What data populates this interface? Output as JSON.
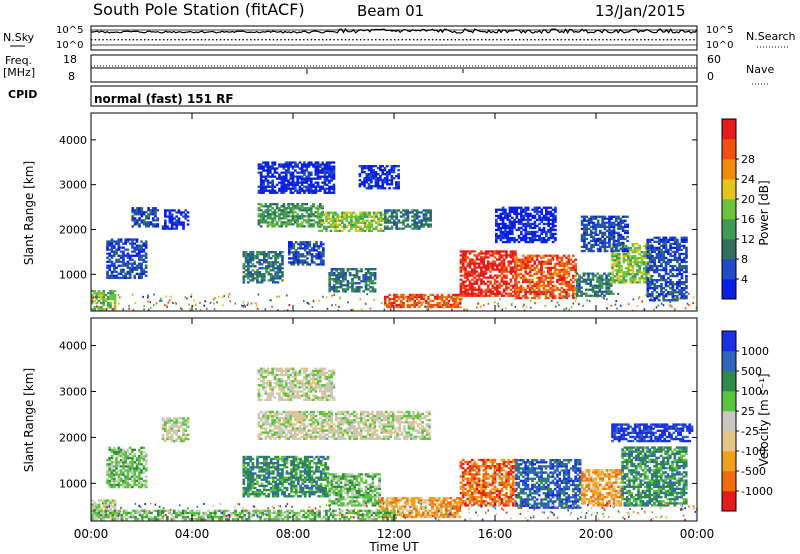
{
  "header": {
    "station": "South Pole Station (fitACF)",
    "beam": "Beam 01",
    "date": "13/Jan/2015"
  },
  "sky_panel": {
    "left_label": "N.Sky",
    "right_label": "N.Search",
    "top_tick": "10^5",
    "bottom_tick": "10^0",
    "right_top_tick": "10^5",
    "right_bottom_tick": "10^0"
  },
  "freq_panel": {
    "left_label_1": "Freq.",
    "left_label_2": "[MHz]",
    "left_top_tick": "18",
    "left_bottom_tick": "8",
    "right_label": "Nave",
    "right_top_tick": "60",
    "right_bottom_tick": "0"
  },
  "cpid": {
    "label": "CPID",
    "value": "normal (fast) 151 RF"
  },
  "chart_data": [
    {
      "type": "heatmap",
      "panel": "power",
      "ylabel": "Slant Range [km]",
      "ylim": [
        180,
        4600
      ],
      "yticks": [
        "1000",
        "2000",
        "3000",
        "4000"
      ],
      "colorbar": {
        "label": "Power [dB]",
        "ticks": [
          "4",
          "8",
          "12",
          "16",
          "20",
          "24",
          "28"
        ],
        "colors": [
          "#0a1ee6",
          "#1f4bc7",
          "#2f6f5f",
          "#3f9a55",
          "#6cc43a",
          "#e6c419",
          "#f08a0a",
          "#f05012",
          "#e61a1a"
        ]
      },
      "regions": [
        {
          "t0": 0.0,
          "t1": 0.9,
          "r0": 200,
          "r1": 650,
          "level": 4
        },
        {
          "t0": 0.6,
          "t1": 2.2,
          "r0": 900,
          "r1": 1800,
          "level": 1
        },
        {
          "t0": 1.6,
          "t1": 2.6,
          "r0": 2050,
          "r1": 2500,
          "level": 1
        },
        {
          "t0": 2.8,
          "t1": 3.8,
          "r0": 2000,
          "r1": 2450,
          "level": 0
        },
        {
          "t0": 6.6,
          "t1": 9.2,
          "r0": 2050,
          "r1": 2550,
          "level": 3
        },
        {
          "t0": 9.0,
          "t1": 11.6,
          "r0": 1950,
          "r1": 2400,
          "level": 4
        },
        {
          "t0": 11.6,
          "t1": 13.4,
          "r0": 2000,
          "r1": 2450,
          "level": 2
        },
        {
          "t0": 6.0,
          "t1": 7.6,
          "r0": 800,
          "r1": 1500,
          "level": 2
        },
        {
          "t0": 7.8,
          "t1": 9.2,
          "r0": 1200,
          "r1": 1700,
          "level": 1
        },
        {
          "t0": 9.4,
          "t1": 11.2,
          "r0": 600,
          "r1": 1100,
          "level": 2
        },
        {
          "t0": 11.6,
          "t1": 14.6,
          "r0": 250,
          "r1": 550,
          "level": 7
        },
        {
          "t0": 14.6,
          "t1": 16.8,
          "r0": 500,
          "r1": 1500,
          "level": 8
        },
        {
          "t0": 16.8,
          "t1": 19.2,
          "r0": 450,
          "r1": 1400,
          "level": 7
        },
        {
          "t0": 19.2,
          "t1": 20.6,
          "r0": 500,
          "r1": 1000,
          "level": 2
        },
        {
          "t0": 20.6,
          "t1": 22.2,
          "r0": 800,
          "r1": 1700,
          "level": 4
        },
        {
          "t0": 22.0,
          "t1": 23.6,
          "r0": 400,
          "r1": 1800,
          "level": 1
        },
        {
          "t0": 19.4,
          "t1": 21.2,
          "r0": 1500,
          "r1": 2300,
          "level": 1
        },
        {
          "t0": 16.0,
          "t1": 18.4,
          "r0": 1700,
          "r1": 2500,
          "level": 0
        },
        {
          "t0": 6.6,
          "t1": 9.6,
          "r0": 2800,
          "r1": 3500,
          "level": 0
        },
        {
          "t0": 10.6,
          "t1": 12.2,
          "r0": 2900,
          "r1": 3400,
          "level": 0
        }
      ]
    },
    {
      "type": "heatmap",
      "panel": "velocity",
      "ylabel": "Slant Range [km]",
      "ylim": [
        180,
        4600
      ],
      "yticks": [
        "1000",
        "2000",
        "3000",
        "4000"
      ],
      "xlabel": "Time UT",
      "xticks": [
        "00:00",
        "04:00",
        "08:00",
        "12:00",
        "16:00",
        "20:00",
        "00:00"
      ],
      "xlim_hours": [
        0,
        24
      ],
      "colorbar": {
        "label": "Velocity [m s⁻¹]",
        "ticks": [
          "1000",
          "500",
          "100",
          "25",
          "-25",
          "-100",
          "-500",
          "-1000"
        ],
        "colors": [
          "#1a30e6",
          "#2f66b8",
          "#2f8a4a",
          "#5ac43a",
          "#c8c8c0",
          "#e6c485",
          "#f0a01a",
          "#f06a10",
          "#e61a1a"
        ]
      },
      "regions": [
        {
          "t0": 0.0,
          "t1": 0.9,
          "r0": 200,
          "r1": 650,
          "level": 4
        },
        {
          "t0": 0.6,
          "t1": 2.2,
          "r0": 900,
          "r1": 1800,
          "level": 3
        },
        {
          "t0": 2.8,
          "t1": 3.8,
          "r0": 1900,
          "r1": 2400,
          "level": 4
        },
        {
          "t0": 6.6,
          "t1": 13.4,
          "r0": 1950,
          "r1": 2550,
          "level": 4
        },
        {
          "t0": 6.0,
          "t1": 9.4,
          "r0": 700,
          "r1": 1600,
          "level": 2
        },
        {
          "t0": 9.4,
          "t1": 11.4,
          "r0": 500,
          "r1": 1200,
          "level": 3
        },
        {
          "t0": 11.4,
          "t1": 14.6,
          "r0": 250,
          "r1": 700,
          "level": 6
        },
        {
          "t0": 14.6,
          "t1": 16.8,
          "r0": 500,
          "r1": 1500,
          "level": 7
        },
        {
          "t0": 16.8,
          "t1": 19.4,
          "r0": 450,
          "r1": 1500,
          "level": 1
        },
        {
          "t0": 19.4,
          "t1": 21.0,
          "r0": 500,
          "r1": 1300,
          "level": 6
        },
        {
          "t0": 21.0,
          "t1": 23.6,
          "r0": 500,
          "r1": 1800,
          "level": 2
        },
        {
          "t0": 20.6,
          "t1": 23.8,
          "r0": 1900,
          "r1": 2300,
          "level": 0
        },
        {
          "t0": 6.6,
          "t1": 9.6,
          "r0": 2800,
          "r1": 3500,
          "level": 4
        },
        {
          "t0": 0.0,
          "t1": 12.0,
          "r0": 200,
          "r1": 420,
          "level": 3
        }
      ]
    }
  ]
}
